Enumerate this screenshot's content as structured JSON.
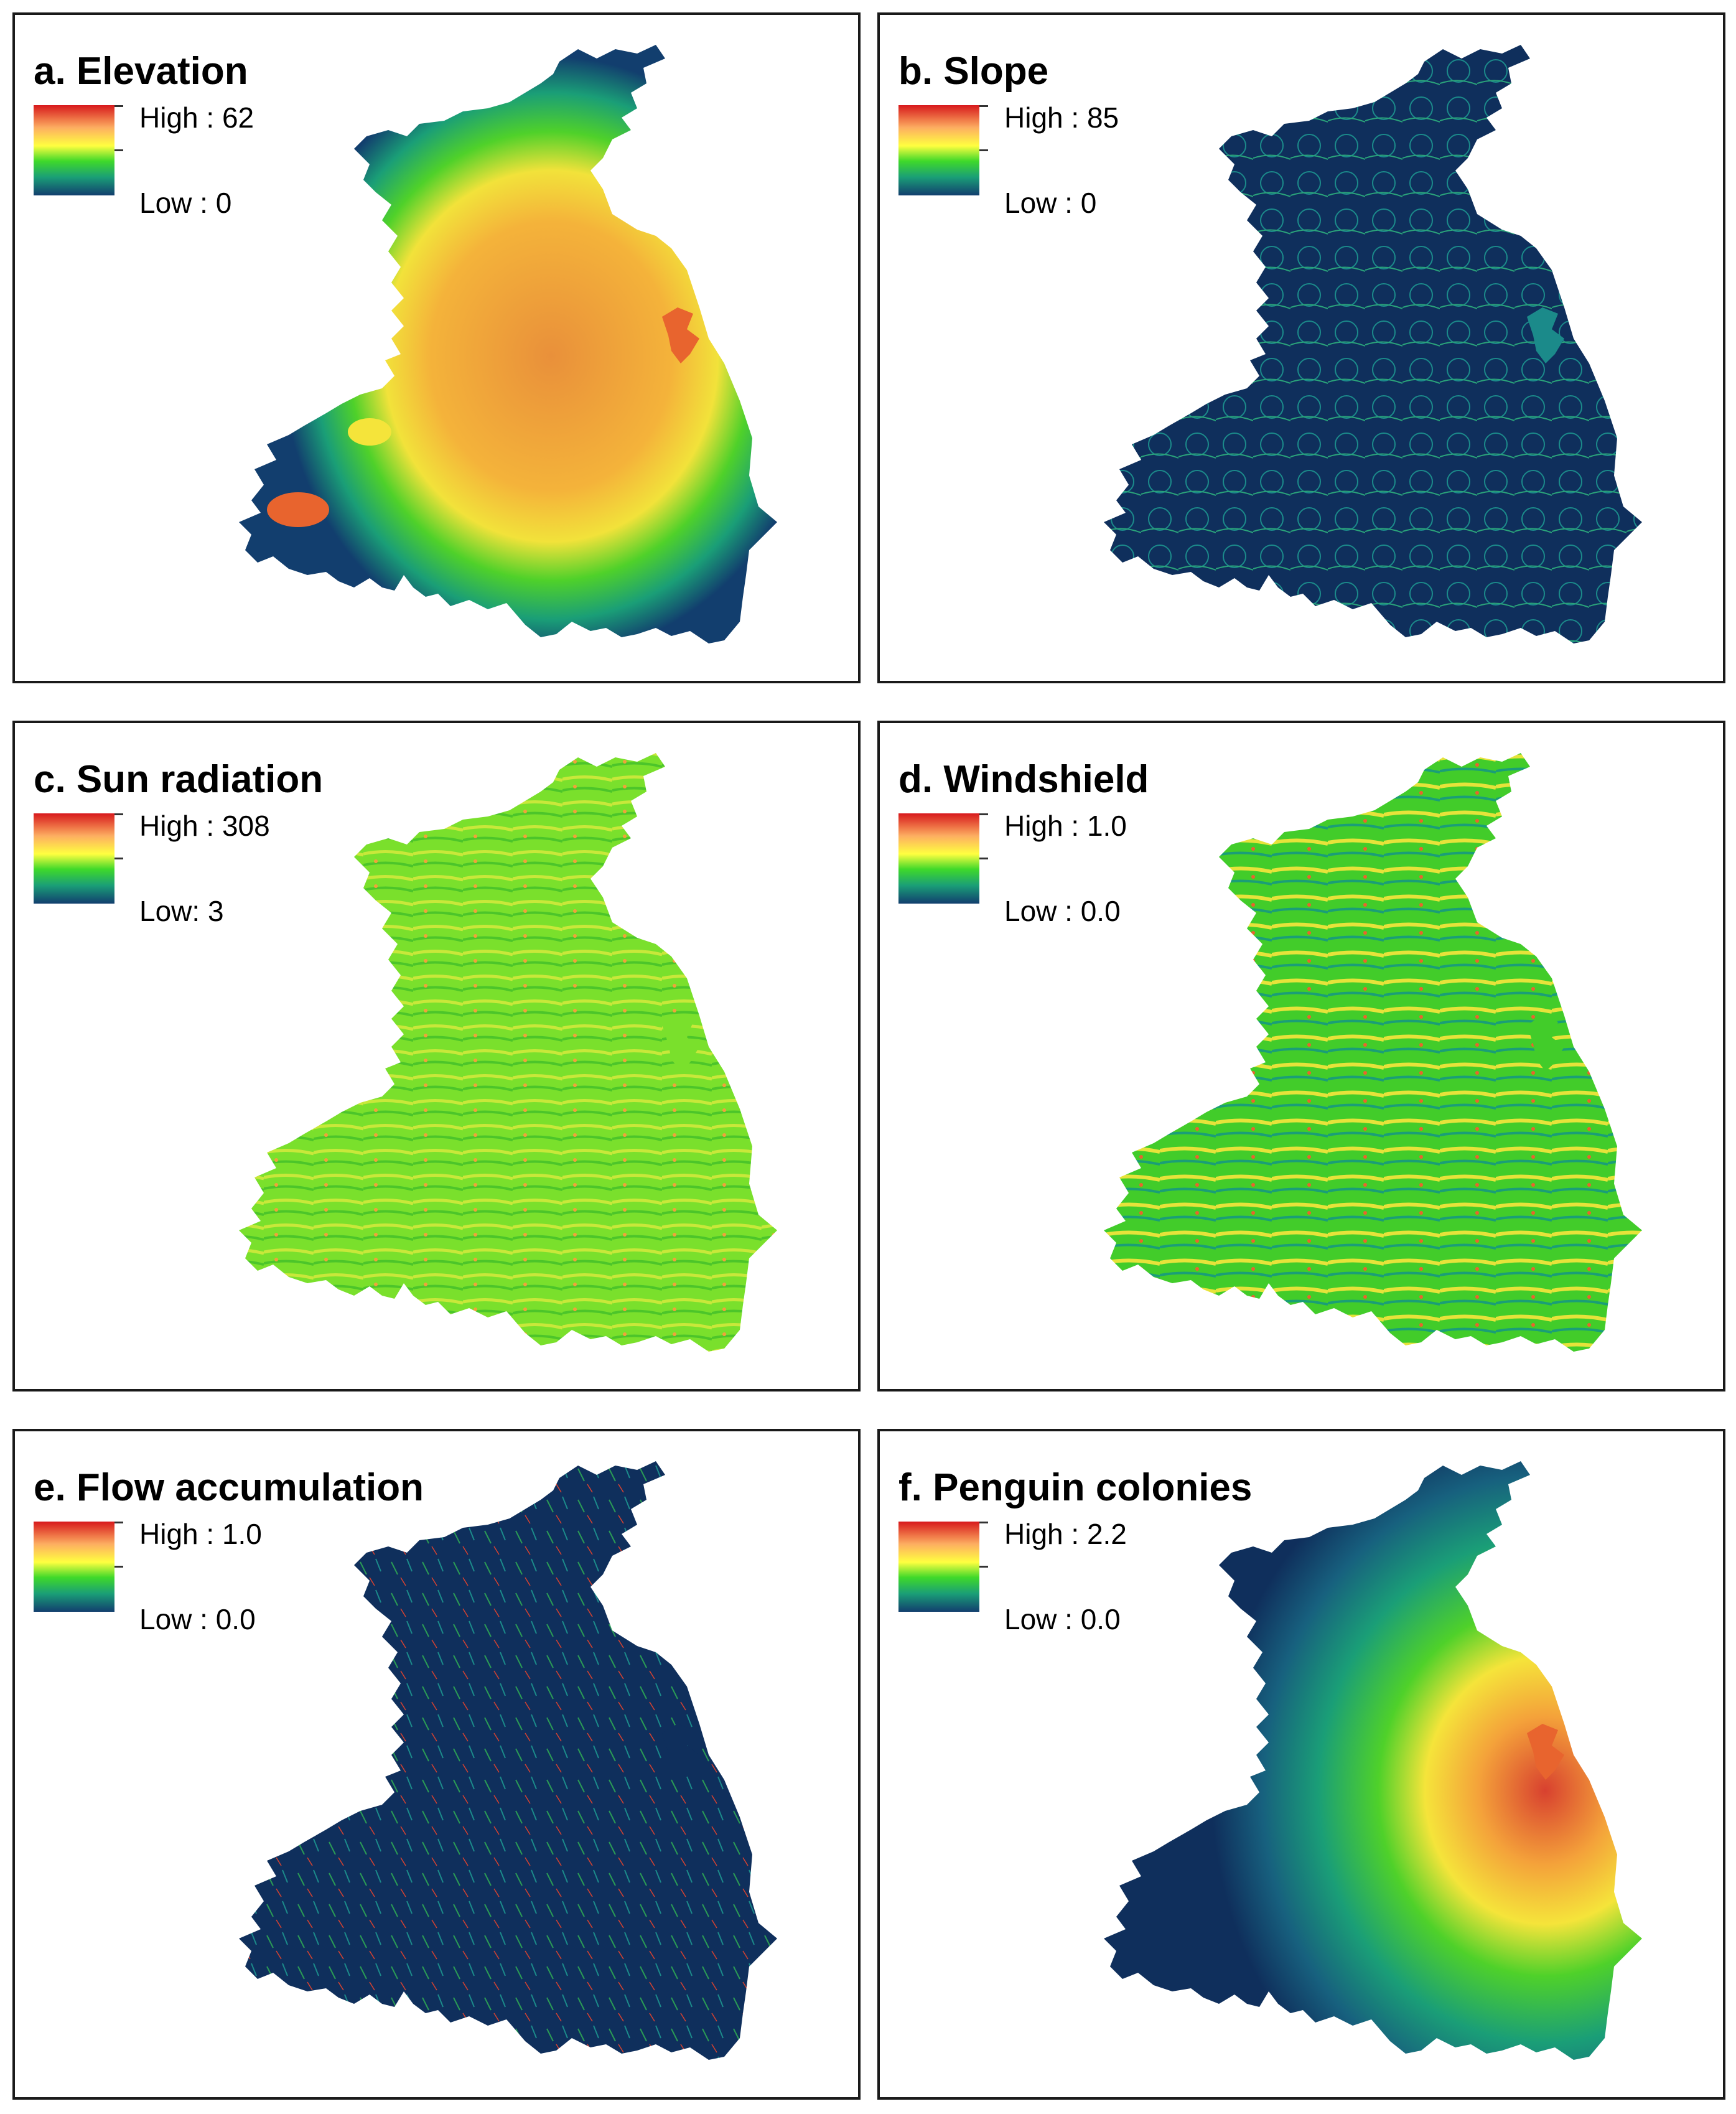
{
  "panels": [
    {
      "id": "elevation",
      "title": "a. Elevation",
      "high": "High : 62",
      "low": "Low : 0",
      "style": "elevation"
    },
    {
      "id": "slope",
      "title": "b. Slope",
      "high": "High : 85",
      "low": "Low : 0",
      "style": "slope"
    },
    {
      "id": "sun",
      "title": "c. Sun radiation",
      "high": "High : 308",
      "low": "Low: 3",
      "style": "sun"
    },
    {
      "id": "windshield",
      "title": "d. Windshield",
      "high": "High : 1.0",
      "low": "Low : 0.0",
      "style": "wind"
    },
    {
      "id": "flow",
      "title": "e. Flow accumulation",
      "high": "High : 1.0",
      "low": "Low : 0.0",
      "style": "flow"
    },
    {
      "id": "penguin",
      "title": "f. Penguin colonies",
      "high": "High : 2.2",
      "low": "Low : 0.0",
      "style": "penguin"
    }
  ],
  "colors": {
    "ramp": [
      "#d7191c",
      "#fdae61",
      "#ffff40",
      "#3fd92a",
      "#1a9e77",
      "#123e6e"
    ],
    "navy": "#0f2f5c",
    "green": "#4fd12a",
    "yellow": "#f5e43a",
    "orange": "#f4a23a",
    "red": "#d8412f",
    "teal": "#1b8a8a"
  }
}
